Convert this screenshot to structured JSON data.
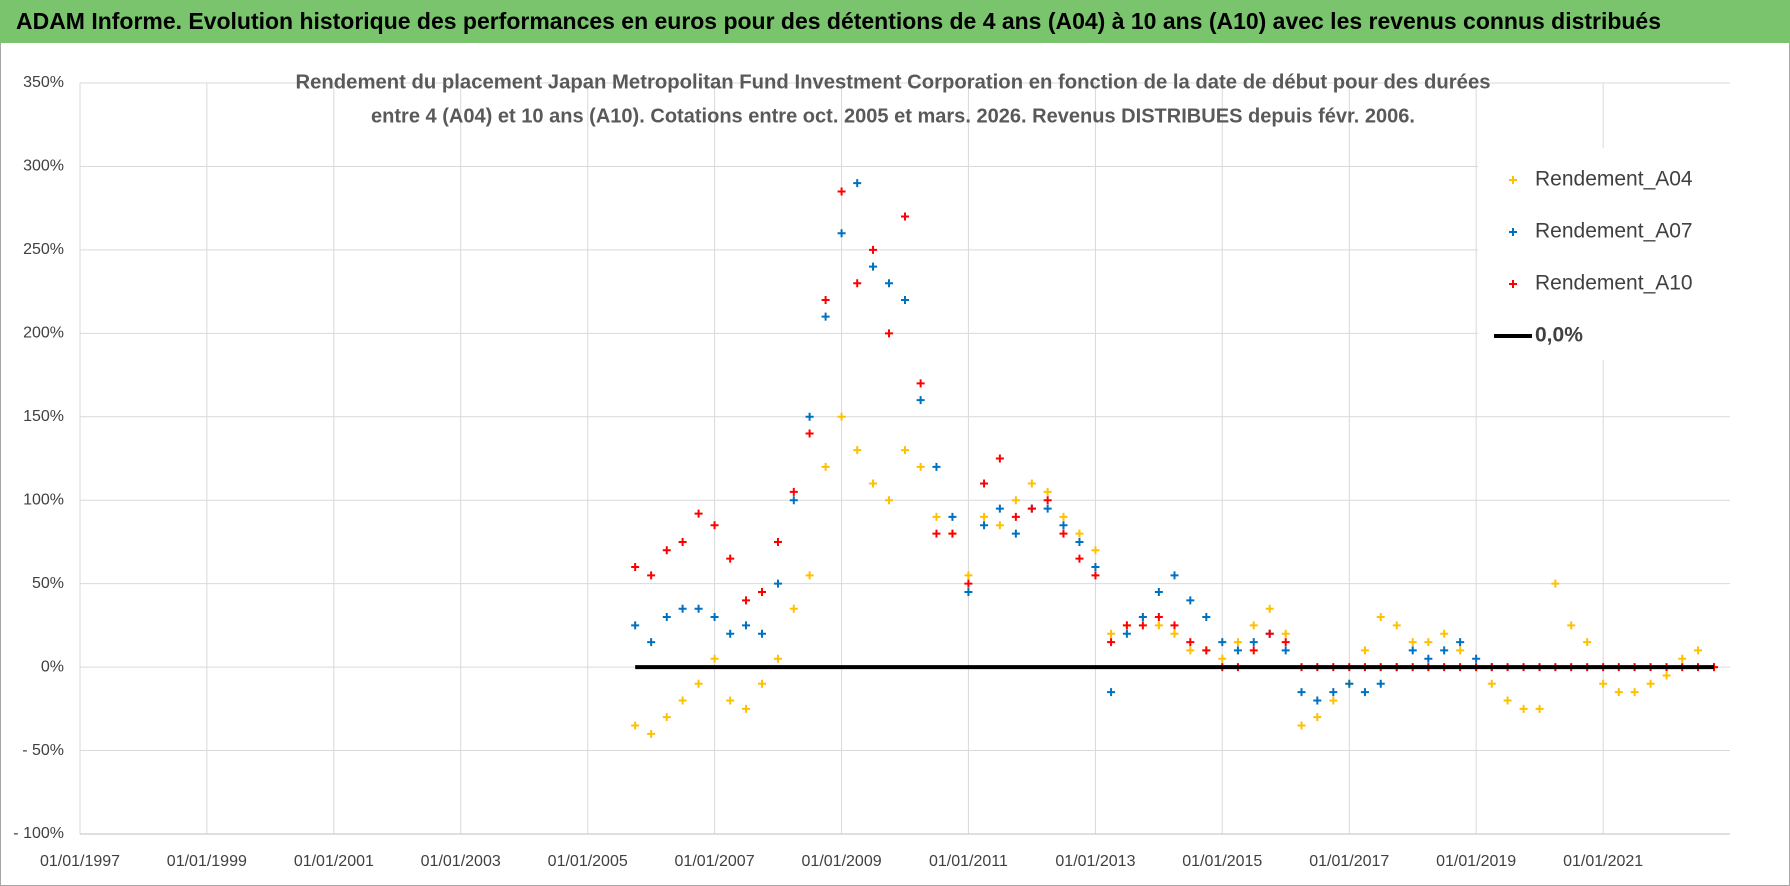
{
  "header": {
    "title": "ADAM Informe. Evolution historique des performances en euros pour des détentions de 4 ans (A04) à 10 ans (A10) avec les revenus connus distribués"
  },
  "chart_data": {
    "type": "scatter",
    "title": [
      "Rendement du placement Japan Metropolitan Fund Investment Corporation en fonction de la date de début pour des durées",
      "entre 4 (A04) et 10 ans (A10). Cotations entre oct. 2005 et mars. 2026. Revenus DISTRIBUES depuis févr. 2006."
    ],
    "x": [
      "2005-10-01",
      "2006-01-01",
      "2006-04-01",
      "2006-07-01",
      "2006-10-01",
      "2007-01-01",
      "2007-04-01",
      "2007-07-01",
      "2007-10-01",
      "2008-01-01",
      "2008-04-01",
      "2008-07-01",
      "2008-10-01",
      "2009-01-01",
      "2009-04-01",
      "2009-07-01",
      "2009-10-01",
      "2010-01-01",
      "2010-04-01",
      "2010-07-01",
      "2010-10-01",
      "2011-01-01",
      "2011-04-01",
      "2011-07-01",
      "2011-10-01",
      "2012-01-01",
      "2012-04-01",
      "2012-07-01",
      "2012-10-01",
      "2013-01-01",
      "2013-04-01",
      "2013-07-01",
      "2013-10-01",
      "2014-01-01",
      "2014-04-01",
      "2014-07-01",
      "2014-10-01",
      "2015-01-01",
      "2015-04-01",
      "2015-07-01",
      "2015-10-01",
      "2016-01-01",
      "2016-04-01",
      "2016-07-01",
      "2016-10-01",
      "2017-01-01",
      "2017-04-01",
      "2017-07-01",
      "2017-10-01",
      "2018-01-01",
      "2018-04-01",
      "2018-07-01",
      "2018-10-01",
      "2019-01-01",
      "2019-04-01",
      "2019-07-01",
      "2019-10-01",
      "2020-01-01",
      "2020-04-01",
      "2020-07-01",
      "2020-10-01",
      "2021-01-01",
      "2021-04-01",
      "2021-07-01",
      "2021-10-01",
      "2022-01-01",
      "2022-04-01",
      "2022-07-01",
      "2022-10-01"
    ],
    "series": [
      {
        "name": "Rendement_A04",
        "color": "#ffc000",
        "values": [
          -35,
          -40,
          -30,
          -20,
          -10,
          5,
          -20,
          -25,
          -10,
          5,
          35,
          55,
          120,
          150,
          130,
          110,
          100,
          130,
          120,
          90,
          80,
          55,
          90,
          85,
          100,
          110,
          105,
          90,
          80,
          70,
          20,
          25,
          30,
          25,
          20,
          10,
          10,
          5,
          15,
          25,
          35,
          20,
          -35,
          -30,
          -20,
          -10,
          10,
          30,
          25,
          15,
          15,
          20,
          10,
          0,
          -10,
          -20,
          -25,
          -25,
          50,
          25,
          15,
          -10,
          -15,
          -15,
          -10,
          -5,
          5,
          10,
          0
        ]
      },
      {
        "name": "Rendement_A07",
        "color": "#0070c0",
        "values": [
          25,
          15,
          30,
          35,
          35,
          30,
          20,
          25,
          20,
          50,
          100,
          150,
          210,
          260,
          290,
          240,
          230,
          220,
          160,
          120,
          90,
          45,
          85,
          95,
          80,
          95,
          95,
          85,
          75,
          60,
          -15,
          20,
          30,
          45,
          55,
          40,
          30,
          15,
          10,
          15,
          20,
          10,
          -15,
          -20,
          -15,
          -10,
          -15,
          -10,
          0,
          10,
          5,
          10,
          15,
          5,
          0,
          null,
          null,
          null,
          null,
          null,
          null,
          null,
          null,
          null,
          null,
          null,
          null,
          null,
          null
        ]
      },
      {
        "name": "Rendement_A10",
        "color": "#ff0000",
        "values": [
          60,
          55,
          70,
          75,
          92,
          85,
          65,
          40,
          45,
          75,
          105,
          140,
          220,
          285,
          230,
          250,
          200,
          270,
          170,
          80,
          80,
          50,
          110,
          125,
          90,
          95,
          100,
          80,
          65,
          55,
          15,
          25,
          25,
          30,
          25,
          15,
          10,
          0,
          0,
          10,
          20,
          15,
          0,
          0,
          0,
          0,
          0,
          0,
          0,
          0,
          0,
          0,
          0,
          0,
          0,
          0,
          0,
          0,
          0,
          0,
          0,
          0,
          0,
          0,
          0,
          0,
          0,
          0,
          0
        ]
      },
      {
        "name": "0,0%",
        "color": "#000000",
        "line": true,
        "values": [
          0,
          0,
          0,
          0,
          0,
          0,
          0,
          0,
          0,
          0,
          0,
          0,
          0,
          0,
          0,
          0,
          0,
          0,
          0,
          0,
          0,
          0,
          0,
          0,
          0,
          0,
          0,
          0,
          0,
          0,
          0,
          0,
          0,
          0,
          0,
          0,
          0,
          0,
          0,
          0,
          0,
          0,
          0,
          0,
          0,
          0,
          0,
          0,
          0,
          0,
          0,
          0,
          0,
          0,
          0,
          0,
          0,
          0,
          0,
          0,
          0,
          0,
          0,
          0,
          0,
          0,
          0,
          0,
          0
        ]
      }
    ],
    "xlim": [
      "1997-01-01",
      "2023-01-01"
    ],
    "xticks": [
      {
        "value": "1997-01-01",
        "label": "01/01/1997"
      },
      {
        "value": "1999-01-01",
        "label": "01/01/1999"
      },
      {
        "value": "2001-01-01",
        "label": "01/01/2001"
      },
      {
        "value": "2003-01-01",
        "label": "01/01/2003"
      },
      {
        "value": "2005-01-01",
        "label": "01/01/2005"
      },
      {
        "value": "2007-01-01",
        "label": "01/01/2007"
      },
      {
        "value": "2009-01-01",
        "label": "01/01/2009"
      },
      {
        "value": "2011-01-01",
        "label": "01/01/2011"
      },
      {
        "value": "2013-01-01",
        "label": "01/01/2013"
      },
      {
        "value": "2015-01-01",
        "label": "01/01/2015"
      },
      {
        "value": "2017-01-01",
        "label": "01/01/2017"
      },
      {
        "value": "2019-01-01",
        "label": "01/01/2019"
      },
      {
        "value": "2021-01-01",
        "label": "01/01/2021"
      }
    ],
    "ylim": [
      -100,
      350
    ],
    "yticks": [
      {
        "value": -100,
        "label": "- 100%"
      },
      {
        "value": -50,
        "label": "- 50%"
      },
      {
        "value": 0,
        "label": "0%"
      },
      {
        "value": 50,
        "label": "50%"
      },
      {
        "value": 100,
        "label": "100%"
      },
      {
        "value": 150,
        "label": "150%"
      },
      {
        "value": 200,
        "label": "200%"
      },
      {
        "value": 250,
        "label": "250%"
      },
      {
        "value": 300,
        "label": "300%"
      },
      {
        "value": 350,
        "label": "350%"
      }
    ],
    "grid": true,
    "legend": "top-right"
  }
}
